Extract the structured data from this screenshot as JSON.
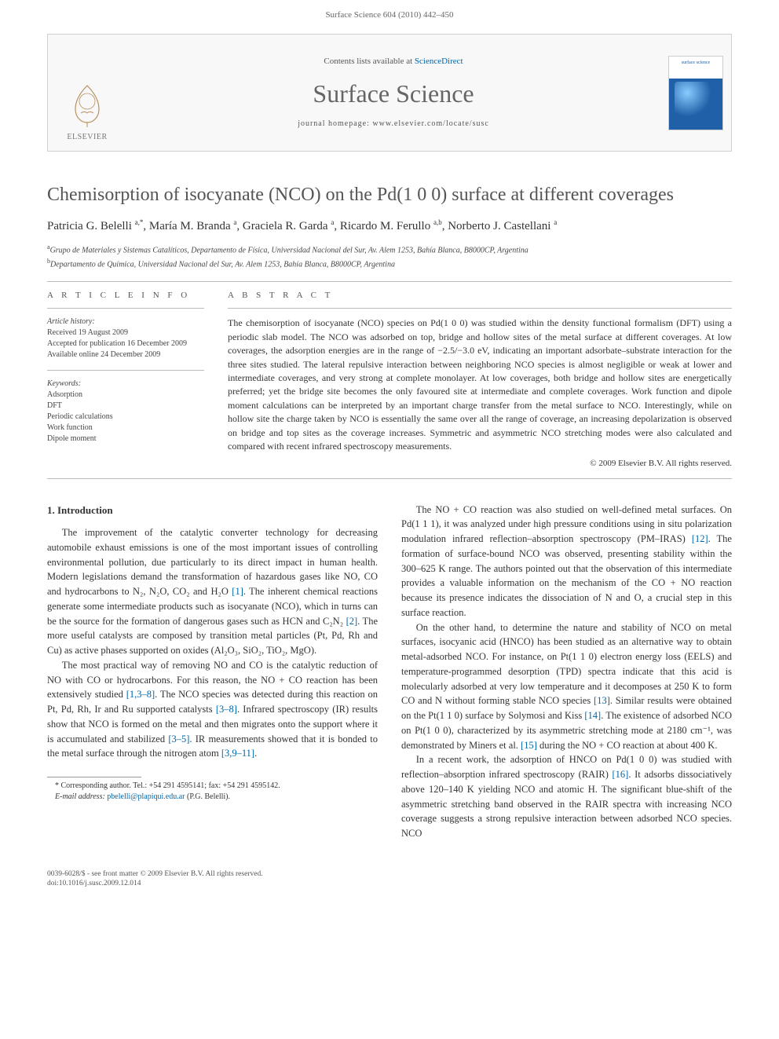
{
  "header": {
    "citation": "Surface Science 604 (2010) 442–450"
  },
  "masthead": {
    "contents_prefix": "Contents lists available at ",
    "contents_link": "ScienceDirect",
    "journal_title": "Surface Science",
    "homepage_label": "journal homepage: www.elsevier.com/locate/susc",
    "publisher": "ELSEVIER",
    "cover_label": "surface science"
  },
  "article": {
    "title": "Chemisorption of isocyanate (NCO) on the Pd(1 0 0) surface at different coverages",
    "authors_html": "Patricia G. Belelli|a,*|, María M. Branda|a|, Graciela R. Garda|a|, Ricardo M. Ferullo|a,b|, Norberto J. Castellani|a|",
    "affiliations": {
      "a": "Grupo de Materiales y Sistemas Catalíticos, Departamento de Física, Universidad Nacional del Sur, Av. Alem 1253, Bahía Blanca, B8000CP, Argentina",
      "b": "Departamento de Química, Universidad Nacional del Sur, Av. Alem 1253, Bahía Blanca, B8000CP, Argentina"
    }
  },
  "info": {
    "heading": "A R T I C L E   I N F O",
    "history_label": "Article history:",
    "received": "Received 19 August 2009",
    "accepted": "Accepted for publication 16 December 2009",
    "online": "Available online 24 December 2009",
    "keywords_label": "Keywords:",
    "keywords": [
      "Adsorption",
      "DFT",
      "Periodic calculations",
      "Work function",
      "Dipole moment"
    ]
  },
  "abstract": {
    "heading": "A B S T R A C T",
    "text": "The chemisorption of isocyanate (NCO) species on Pd(1 0 0) was studied within the density functional formalism (DFT) using a periodic slab model. The NCO was adsorbed on top, bridge and hollow sites of the metal surface at different coverages. At low coverages, the adsorption energies are in the range of −2.5/−3.0 eV, indicating an important adsorbate–substrate interaction for the three sites studied. The lateral repulsive interaction between neighboring NCO species is almost negligible or weak at lower and intermediate coverages, and very strong at complete monolayer. At low coverages, both bridge and hollow sites are energetically preferred; yet the bridge site becomes the only favoured site at intermediate and complete coverages. Work function and dipole moment calculations can be interpreted by an important charge transfer from the metal surface to NCO. Interestingly, while on hollow site the charge taken by NCO is essentially the same over all the range of coverage, an increasing depolarization is observed on bridge and top sites as the coverage increases. Symmetric and asymmetric NCO stretching modes were also calculated and compared with recent infrared spectroscopy measurements.",
    "copyright": "© 2009 Elsevier B.V. All rights reserved."
  },
  "body": {
    "intro_heading": "1. Introduction",
    "left": {
      "p1": "The improvement of the catalytic converter technology for decreasing automobile exhaust emissions is one of the most important issues of controlling environmental pollution, due particularly to its direct impact in human health. Modern legislations demand the transformation of hazardous gases like NO, CO and hydrocarbons to N₂, N₂O, CO₂ and H₂O [1]. The inherent chemical reactions generate some intermediate products such as isocyanate (NCO), which in turns can be the source for the formation of dangerous gases such as HCN and C₂N₂ [2]. The more useful catalysts are composed by transition metal particles (Pt, Pd, Rh and Cu) as active phases supported on oxides (Al₂O₃, SiO₂, TiO₂, MgO).",
      "p2": "The most practical way of removing NO and CO is the catalytic reduction of NO with CO or hydrocarbons. For this reason, the NO + CO reaction has been extensively studied [1,3–8]. The NCO species was detected during this reaction on Pt, Pd, Rh, Ir and Ru supported catalysts [3–8]. Infrared spectroscopy (IR) results show that NCO is formed on the metal and then migrates onto the support where it is accumulated and stabilized [3–5]. IR measurements showed that it is bonded to the metal surface through the nitrogen atom [3,9–11]."
    },
    "right": {
      "p1": "The NO + CO reaction was also studied on well-defined metal surfaces. On Pd(1 1 1), it was analyzed under high pressure conditions using in situ polarization modulation infrared reflection–absorption spectroscopy (PM–IRAS) [12]. The formation of surface-bound NCO was observed, presenting stability within the 300–625 K range. The authors pointed out that the observation of this intermediate provides a valuable information on the mechanism of the CO + NO reaction because its presence indicates the dissociation of N and O, a crucial step in this surface reaction.",
      "p2": "On the other hand, to determine the nature and stability of NCO on metal surfaces, isocyanic acid (HNCO) has been studied as an alternative way to obtain metal-adsorbed NCO. For instance, on Pt(1 1 0) electron energy loss (EELS) and temperature-programmed desorption (TPD) spectra indicate that this acid is molecularly adsorbed at very low temperature and it decomposes at 250 K to form CO and N without forming stable NCO species [13]. Similar results were obtained on the Pt(1 1 0) surface by Solymosi and Kiss [14]. The existence of adsorbed NCO on Pt(1 0 0), characterized by its asymmetric stretching mode at 2180 cm⁻¹, was demonstrated by Miners et al. [15] during the NO + CO reaction at about 400 K.",
      "p3": "In a recent work, the adsorption of HNCO on Pd(1 0 0) was studied with reflection–absorption infrared spectroscopy (RAIR) [16]. It adsorbs dissociatively above 120–140 K yielding NCO and atomic H. The significant blue-shift of the asymmetric stretching band observed in the RAIR spectra with increasing NCO coverage suggests a strong repulsive interaction between adsorbed NCO species. NCO"
    }
  },
  "footnote": {
    "corr": "* Corresponding author. Tel.: +54 291 4595141; fax: +54 291 4595142.",
    "email_label": "E-mail address:",
    "email": "pbelelli@plapiqui.edu.ar",
    "email_person": "(P.G. Belelli)."
  },
  "footer": {
    "line1": "0039-6028/$ - see front matter © 2009 Elsevier B.V. All rights reserved.",
    "line2": "doi:10.1016/j.susc.2009.12.014"
  },
  "colors": {
    "link": "#0066aa",
    "text": "#333333",
    "muted": "#555555",
    "rule": "#bbbbbb",
    "cover_blue": "#2060a8"
  }
}
